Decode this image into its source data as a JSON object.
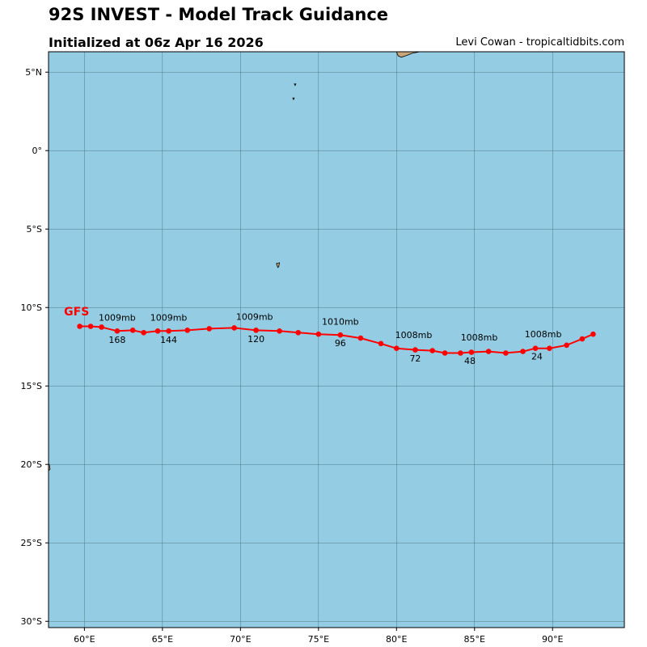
{
  "header": {
    "title": "92S INVEST - Model Track Guidance",
    "subtitle": "Initialized at 06z Apr 16 2026",
    "credit": "Levi Cowan - tropicaltidbits.com"
  },
  "map": {
    "lon_range": [
      57.7,
      94.6
    ],
    "lat_range": [
      -30.4,
      6.3
    ],
    "lon_ticks": [
      {
        "value": 60,
        "label": "60°E"
      },
      {
        "value": 65,
        "label": "65°E"
      },
      {
        "value": 70,
        "label": "70°E"
      },
      {
        "value": 75,
        "label": "75°E"
      },
      {
        "value": 80,
        "label": "80°E"
      },
      {
        "value": 85,
        "label": "85°E"
      },
      {
        "value": 90,
        "label": "90°E"
      }
    ],
    "lat_ticks": [
      {
        "value": 5,
        "label": "5°N"
      },
      {
        "value": 0,
        "label": "0°"
      },
      {
        "value": -5,
        "label": "5°S"
      },
      {
        "value": -10,
        "label": "10°S"
      },
      {
        "value": -15,
        "label": "15°S"
      },
      {
        "value": -20,
        "label": "20°S"
      },
      {
        "value": -25,
        "label": "25°S"
      },
      {
        "value": -30,
        "label": "30°S"
      }
    ],
    "colors": {
      "ocean": "#94cde3",
      "land": "#c8a677",
      "grid": "#3c6270",
      "track": "#ff0000"
    },
    "grid": true
  },
  "chart_data": {
    "type": "scatter",
    "series": [
      {
        "name": "GFS",
        "points": [
          {
            "lon": 92.6,
            "lat": -11.7
          },
          {
            "lon": 91.9,
            "lat": -12.0
          },
          {
            "lon": 90.9,
            "lat": -12.4
          },
          {
            "lon": 89.8,
            "lat": -12.6
          },
          {
            "lon": 88.9,
            "lat": -12.6
          },
          {
            "lon": 88.1,
            "lat": -12.8
          },
          {
            "lon": 87.0,
            "lat": -12.9
          },
          {
            "lon": 85.9,
            "lat": -12.8
          },
          {
            "lon": 84.8,
            "lat": -12.85
          },
          {
            "lon": 84.1,
            "lat": -12.9
          },
          {
            "lon": 83.1,
            "lat": -12.9
          },
          {
            "lon": 82.3,
            "lat": -12.75
          },
          {
            "lon": 81.2,
            "lat": -12.7
          },
          {
            "lon": 80.0,
            "lat": -12.6
          },
          {
            "lon": 79.0,
            "lat": -12.3
          },
          {
            "lon": 77.7,
            "lat": -11.95
          },
          {
            "lon": 76.4,
            "lat": -11.75
          },
          {
            "lon": 75.0,
            "lat": -11.7
          },
          {
            "lon": 73.7,
            "lat": -11.6
          },
          {
            "lon": 72.5,
            "lat": -11.5
          },
          {
            "lon": 71.0,
            "lat": -11.45
          },
          {
            "lon": 69.6,
            "lat": -11.3
          },
          {
            "lon": 68.0,
            "lat": -11.35
          },
          {
            "lon": 66.6,
            "lat": -11.45
          },
          {
            "lon": 65.4,
            "lat": -11.5
          },
          {
            "lon": 64.7,
            "lat": -11.5
          },
          {
            "lon": 63.8,
            "lat": -11.6
          },
          {
            "lon": 63.1,
            "lat": -11.45
          },
          {
            "lon": 62.1,
            "lat": -11.5
          },
          {
            "lon": 61.1,
            "lat": -11.25
          },
          {
            "lon": 60.4,
            "lat": -11.2
          },
          {
            "lon": 59.7,
            "lat": -11.2
          }
        ]
      }
    ],
    "pressure_labels": [
      {
        "text": "1008mb",
        "lon": 89.4,
        "lat": -11.9
      },
      {
        "text": "1008mb",
        "lon": 85.3,
        "lat": -12.1
      },
      {
        "text": "1008mb",
        "lon": 81.1,
        "lat": -11.95
      },
      {
        "text": "1010mb",
        "lon": 76.4,
        "lat": -11.1
      },
      {
        "text": "1009mb",
        "lon": 70.9,
        "lat": -10.8
      },
      {
        "text": "1009mb",
        "lon": 65.4,
        "lat": -10.85
      },
      {
        "text": "1009mb",
        "lon": 62.1,
        "lat": -10.85
      }
    ],
    "hour_labels": [
      {
        "text": "24",
        "lon": 89.0,
        "lat": -13.3
      },
      {
        "text": "48",
        "lon": 84.7,
        "lat": -13.6
      },
      {
        "text": "72",
        "lon": 81.2,
        "lat": -13.45
      },
      {
        "text": "96",
        "lon": 76.4,
        "lat": -12.45
      },
      {
        "text": "120",
        "lon": 71.0,
        "lat": -12.2
      },
      {
        "text": "144",
        "lon": 65.4,
        "lat": -12.25
      },
      {
        "text": "168",
        "lon": 62.1,
        "lat": -12.25
      }
    ],
    "model_label": {
      "text": "GFS",
      "lon": 59.5,
      "lat": -10.5
    },
    "land": [
      {
        "name": "sri-lanka-tip",
        "points": [
          [
            80.0,
            6.3
          ],
          [
            80.1,
            6.05
          ],
          [
            80.3,
            5.95
          ],
          [
            80.6,
            6.05
          ],
          [
            81.0,
            6.2
          ],
          [
            81.5,
            6.3
          ]
        ]
      },
      {
        "name": "maldives-islet-1",
        "points": [
          [
            73.45,
            4.25
          ],
          [
            73.55,
            4.25
          ],
          [
            73.5,
            4.15
          ]
        ]
      },
      {
        "name": "maldives-islet-2",
        "points": [
          [
            73.35,
            3.35
          ],
          [
            73.45,
            3.35
          ],
          [
            73.4,
            3.25
          ]
        ]
      },
      {
        "name": "chagos-islet",
        "points": [
          [
            72.3,
            -7.2
          ],
          [
            72.5,
            -7.15
          ],
          [
            72.45,
            -7.4
          ],
          [
            72.4,
            -7.45
          ]
        ]
      },
      {
        "name": "mauritius-edge",
        "points": [
          [
            57.7,
            -20.0
          ],
          [
            57.75,
            -20.0
          ],
          [
            57.8,
            -20.3
          ],
          [
            57.7,
            -20.4
          ]
        ]
      }
    ]
  }
}
